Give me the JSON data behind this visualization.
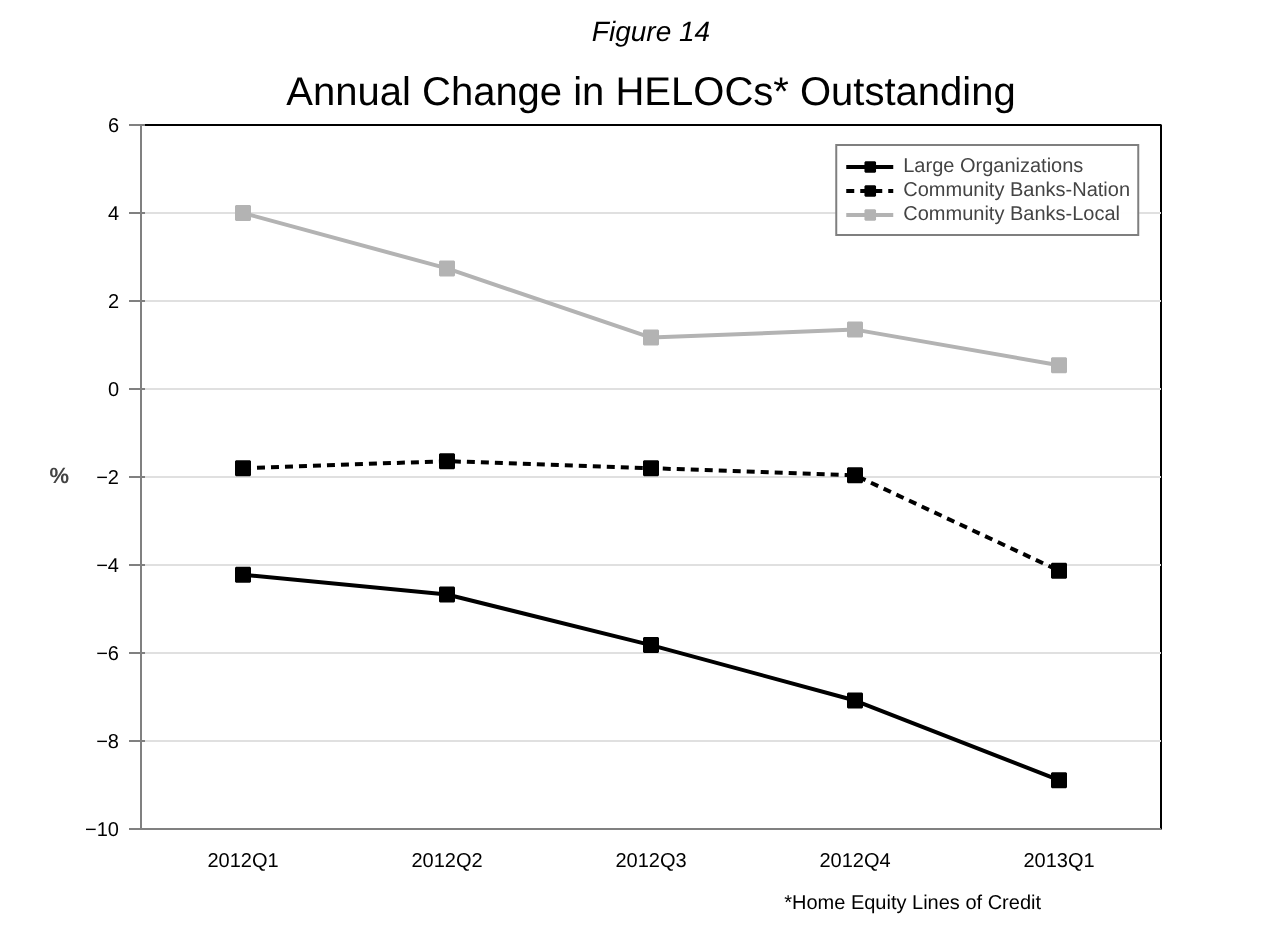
{
  "chart_data": {
    "type": "line",
    "title": "Figure 14",
    "subtitle": "Annual Change in HELOCs* Outstanding",
    "ylabel": "%",
    "categories": [
      "2012Q1",
      "2012Q2",
      "2012Q3",
      "2012Q4",
      "2013Q1"
    ],
    "series": [
      {
        "name": "Large Organizations",
        "color": "#000000",
        "line_style": "solid",
        "values": [
          -4.22,
          -4.67,
          -5.82,
          -7.08,
          -8.89
        ]
      },
      {
        "name": "Community Banks-Nation",
        "color": "#000000",
        "line_style": "dashed",
        "values": [
          -1.8,
          -1.64,
          -1.8,
          -1.96,
          -4.13
        ]
      },
      {
        "name": "Community Banks-Local",
        "color": "#b3b3b3",
        "line_style": "solid",
        "values": [
          4.0,
          2.74,
          1.17,
          1.35,
          0.54
        ]
      }
    ],
    "ylim": [
      -10,
      6
    ],
    "yticks": [
      -10,
      -8,
      -6,
      -4,
      -2,
      0,
      2,
      4,
      6
    ],
    "grid": "y",
    "legend": "top right",
    "marker": "square",
    "annotations": [
      "*Home Equity Lines of Credit"
    ]
  }
}
